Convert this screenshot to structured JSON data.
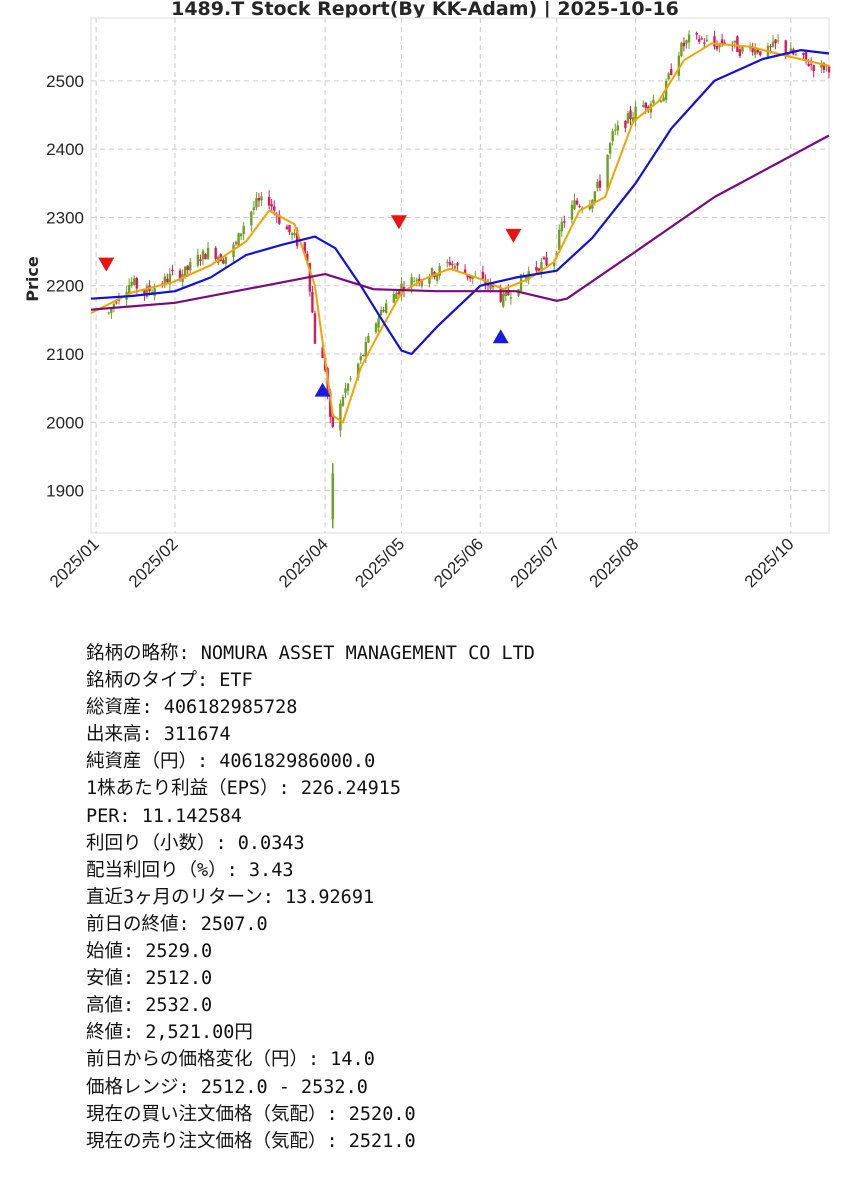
{
  "chart_data": {
    "type": "candlestick",
    "title": "1489.T   Stock Report(By KK-Adam) | 2025-10-16",
    "xlabel": "",
    "ylabel": "Price",
    "x_ticks": [
      "2025/01",
      "2025/02",
      "2025/04",
      "2025/05",
      "2025/06",
      "2025/07",
      "2025/08",
      "2025/10"
    ],
    "y_ticks": [
      1900,
      2000,
      2100,
      2200,
      2300,
      2400,
      2500
    ],
    "ylim": [
      1838,
      2592
    ],
    "xlim": [
      "2024-12-30",
      "2025-10-16"
    ],
    "grid": true,
    "colors": {
      "up": "#6aa121",
      "down": "#d7195f",
      "ma_short": "#f5a300",
      "ma_mid": "#1010e0",
      "ma_long": "#7a0a80",
      "sell_marker": "#ee1111",
      "buy_marker": "#1a1ae0"
    },
    "close_series": [
      [
        "2025-01-06",
        2160
      ],
      [
        "2025-01-10",
        2190
      ],
      [
        "2025-01-15",
        2205
      ],
      [
        "2025-01-20",
        2190
      ],
      [
        "2025-01-25",
        2200
      ],
      [
        "2025-01-31",
        2215
      ],
      [
        "2025-02-05",
        2220
      ],
      [
        "2025-02-10",
        2240
      ],
      [
        "2025-02-15",
        2252
      ],
      [
        "2025-02-20",
        2240
      ],
      [
        "2025-02-25",
        2260
      ],
      [
        "2025-03-01",
        2300
      ],
      [
        "2025-03-05",
        2320
      ],
      [
        "2025-03-10",
        2325
      ],
      [
        "2025-03-15",
        2290
      ],
      [
        "2025-03-20",
        2270
      ],
      [
        "2025-03-25",
        2240
      ],
      [
        "2025-03-28",
        2120
      ],
      [
        "2025-04-01",
        2080
      ],
      [
        "2025-04-03",
        2000
      ],
      [
        "2025-04-05",
        1990
      ],
      [
        "2025-04-08",
        2040
      ],
      [
        "2025-04-12",
        2070
      ],
      [
        "2025-04-16",
        2100
      ],
      [
        "2025-04-20",
        2140
      ],
      [
        "2025-04-24",
        2170
      ],
      [
        "2025-04-28",
        2185
      ],
      [
        "2025-05-01",
        2200
      ],
      [
        "2025-05-06",
        2210
      ],
      [
        "2025-05-10",
        2215
      ],
      [
        "2025-05-15",
        2220
      ],
      [
        "2025-05-20",
        2235
      ],
      [
        "2025-05-25",
        2220
      ],
      [
        "2025-05-30",
        2210
      ],
      [
        "2025-06-05",
        2200
      ],
      [
        "2025-06-10",
        2180
      ],
      [
        "2025-06-15",
        2200
      ],
      [
        "2025-06-20",
        2220
      ],
      [
        "2025-06-25",
        2230
      ],
      [
        "2025-06-30",
        2240
      ],
      [
        "2025-07-03",
        2290
      ],
      [
        "2025-07-08",
        2320
      ],
      [
        "2025-07-13",
        2320
      ],
      [
        "2025-07-18",
        2350
      ],
      [
        "2025-07-23",
        2420
      ],
      [
        "2025-07-28",
        2440
      ],
      [
        "2025-08-02",
        2460
      ],
      [
        "2025-08-07",
        2470
      ],
      [
        "2025-08-12",
        2480
      ],
      [
        "2025-08-17",
        2540
      ],
      [
        "2025-08-22",
        2560
      ],
      [
        "2025-08-27",
        2560
      ],
      [
        "2025-09-01",
        2550
      ],
      [
        "2025-09-06",
        2560
      ],
      [
        "2025-09-11",
        2545
      ],
      [
        "2025-09-16",
        2550
      ],
      [
        "2025-09-21",
        2540
      ],
      [
        "2025-09-26",
        2555
      ],
      [
        "2025-10-01",
        2540
      ],
      [
        "2025-10-06",
        2530
      ],
      [
        "2025-10-11",
        2520
      ],
      [
        "2025-10-16",
        2521
      ]
    ],
    "series": [
      {
        "values": [
          [
            "2024-12-30",
            2160
          ],
          [
            "2025-01-15",
            2190
          ],
          [
            "2025-01-31",
            2205
          ],
          [
            "2025-02-15",
            2230
          ],
          [
            "2025-03-01",
            2265
          ],
          [
            "2025-03-10",
            2310
          ],
          [
            "2025-03-20",
            2290
          ],
          [
            "2025-03-28",
            2200
          ],
          [
            "2025-04-04",
            2010
          ],
          [
            "2025-04-08",
            2000
          ],
          [
            "2025-04-15",
            2080
          ],
          [
            "2025-04-22",
            2130
          ],
          [
            "2025-05-01",
            2190
          ],
          [
            "2025-05-10",
            2210
          ],
          [
            "2025-05-20",
            2225
          ],
          [
            "2025-06-01",
            2210
          ],
          [
            "2025-06-10",
            2195
          ],
          [
            "2025-06-20",
            2210
          ],
          [
            "2025-06-30",
            2235
          ],
          [
            "2025-07-10",
            2310
          ],
          [
            "2025-07-20",
            2330
          ],
          [
            "2025-07-31",
            2440
          ],
          [
            "2025-08-10",
            2470
          ],
          [
            "2025-08-20",
            2530
          ],
          [
            "2025-08-31",
            2555
          ],
          [
            "2025-09-15",
            2550
          ],
          [
            "2025-10-01",
            2535
          ],
          [
            "2025-10-16",
            2522
          ]
        ]
      },
      {
        "values": [
          [
            "2024-12-30",
            2181
          ],
          [
            "2025-01-15",
            2185
          ],
          [
            "2025-02-01",
            2192
          ],
          [
            "2025-02-15",
            2212
          ],
          [
            "2025-03-01",
            2245
          ],
          [
            "2025-03-15",
            2260
          ],
          [
            "2025-03-28",
            2272
          ],
          [
            "2025-04-05",
            2255
          ],
          [
            "2025-04-15",
            2200
          ],
          [
            "2025-04-25",
            2140
          ],
          [
            "2025-05-01",
            2105
          ],
          [
            "2025-05-05",
            2100
          ],
          [
            "2025-05-15",
            2140
          ],
          [
            "2025-06-01",
            2200
          ],
          [
            "2025-06-15",
            2212
          ],
          [
            "2025-07-01",
            2222
          ],
          [
            "2025-07-15",
            2270
          ],
          [
            "2025-08-01",
            2350
          ],
          [
            "2025-08-15",
            2430
          ],
          [
            "2025-09-01",
            2500
          ],
          [
            "2025-09-20",
            2532
          ],
          [
            "2025-10-05",
            2545
          ],
          [
            "2025-10-16",
            2540
          ]
        ]
      },
      {
        "values": [
          [
            "2024-12-30",
            2165
          ],
          [
            "2025-02-01",
            2175
          ],
          [
            "2025-03-01",
            2195
          ],
          [
            "2025-04-01",
            2217
          ],
          [
            "2025-04-20",
            2195
          ],
          [
            "2025-05-15",
            2192
          ],
          [
            "2025-06-15",
            2192
          ],
          [
            "2025-07-01",
            2178
          ],
          [
            "2025-07-05",
            2181
          ],
          [
            "2025-08-01",
            2250
          ],
          [
            "2025-09-01",
            2330
          ],
          [
            "2025-10-16",
            2420
          ]
        ]
      }
    ],
    "markers": [
      {
        "type": "sell",
        "date": "2025-01-05",
        "value": 2231
      },
      {
        "type": "buy",
        "date": "2025-03-31",
        "value": 2048
      },
      {
        "type": "sell",
        "date": "2025-04-30",
        "value": 2293
      },
      {
        "type": "buy",
        "date": "2025-06-09",
        "value": 2126
      },
      {
        "type": "sell",
        "date": "2025-06-14",
        "value": 2273
      }
    ]
  },
  "info_lines": [
    "銘柄の略称: NOMURA ASSET MANAGEMENT CO LTD",
    "銘柄のタイプ: ETF",
    "総資産: 406182985728",
    "出来高: 311674",
    "純資産（円）: 406182986000.0",
    "1株あたり利益（EPS）: 226.24915",
    "PER: 11.142584",
    "利回り（小数）: 0.0343",
    "配当利回り（%）: 3.43",
    "直近3ヶ月のリターン: 13.92691",
    "前日の終値: 2507.0",
    "始値: 2529.0",
    "安値: 2512.0",
    "高値: 2532.0",
    "終値: 2,521.00円",
    "前日からの価格変化（円）: 14.0",
    "価格レンジ: 2512.0 - 2532.0",
    "現在の買い注文価格（気配）: 2520.0",
    "現在の売り注文価格（気配）: 2521.0"
  ]
}
